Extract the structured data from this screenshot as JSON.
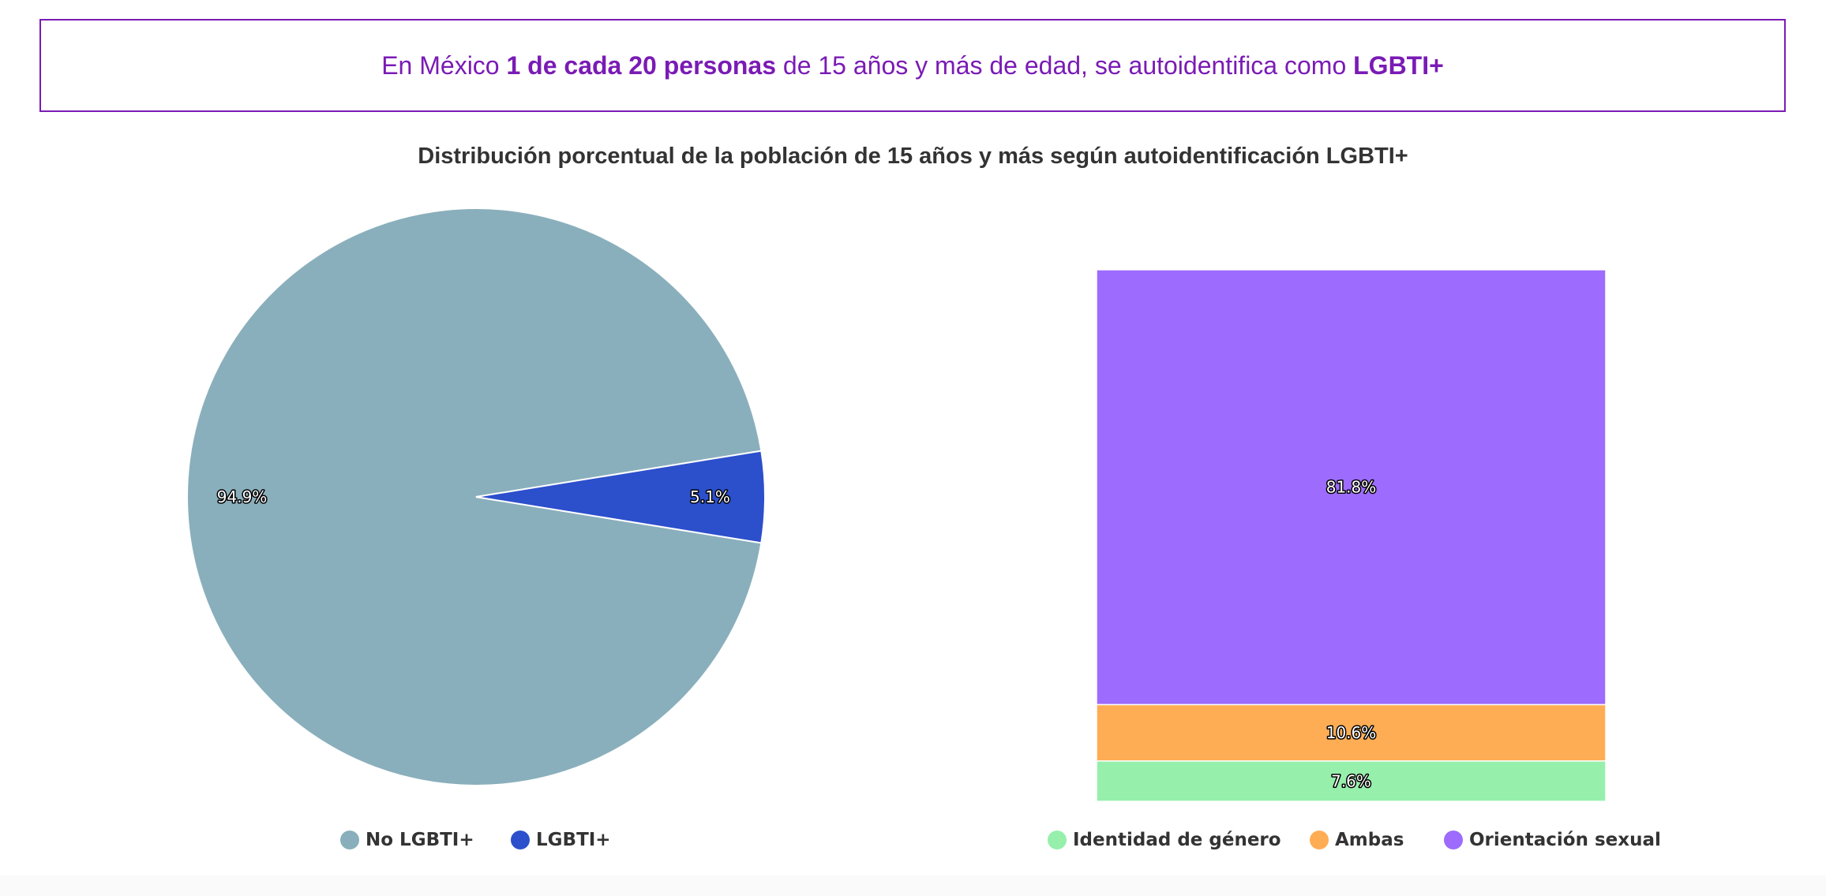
{
  "banner": {
    "p1": "En México ",
    "b1": "1 de cada 20 personas",
    "p2": " de 15 años y más de edad, se autoidentifica como ",
    "b2": "LGBTI+"
  },
  "colors": {
    "accent": "#7a1bb5"
  },
  "chart_data": [
    {
      "type": "pie",
      "title": "Distribución porcentual de la población de 15 años y más según autoidentificación LGBTI+",
      "categories": [
        "No LGBTI+",
        "LGBTI+"
      ],
      "values": [
        94.9,
        5.1
      ],
      "labels": [
        "94.9%",
        "5.1%"
      ],
      "colors": [
        "#8aafbc",
        "#2c4fcb"
      ],
      "legend": "bottom"
    },
    {
      "type": "bar",
      "stacked": true,
      "categories": [
        "Identidad de género",
        "Ambas",
        "Orientación sexual"
      ],
      "values": [
        7.6,
        10.6,
        81.8
      ],
      "labels": [
        "7.6%",
        "10.6%",
        "81.8%"
      ],
      "colors": [
        "#96f0ac",
        "#ffad55",
        "#9d6bfe"
      ],
      "legend": "bottom"
    }
  ]
}
